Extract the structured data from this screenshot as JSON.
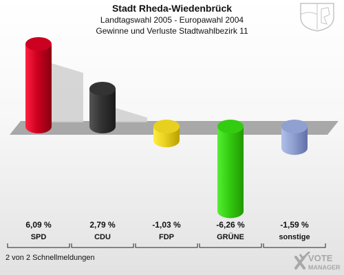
{
  "header": {
    "title": "Stadt Rheda-Wiedenbrück",
    "subtitle1": "Landtagswahl 2005 - Europawahl 2004",
    "subtitle2": "Gewinne und Verluste Stadtwahlbezirk 11"
  },
  "footer": {
    "note": "2 von 2 Schnellmeldungen"
  },
  "brand": {
    "line1": "VOTE",
    "line2": "MANAGER"
  },
  "chart_data": {
    "type": "bar",
    "categories": [
      "SPD",
      "CDU",
      "FDP",
      "GRÜNE",
      "sonstige"
    ],
    "values": [
      6.09,
      2.79,
      -1.03,
      -6.26,
      -1.59
    ],
    "value_labels": [
      "6,09 %",
      "2,79 %",
      "-1,03 %",
      "-6,26 %",
      "-1,59 %"
    ],
    "colors": [
      "#cc0020",
      "#333333",
      "#e8d020",
      "#33cc11",
      "#90a0d0"
    ],
    "ylim": [
      -6.26,
      6.09
    ]
  }
}
